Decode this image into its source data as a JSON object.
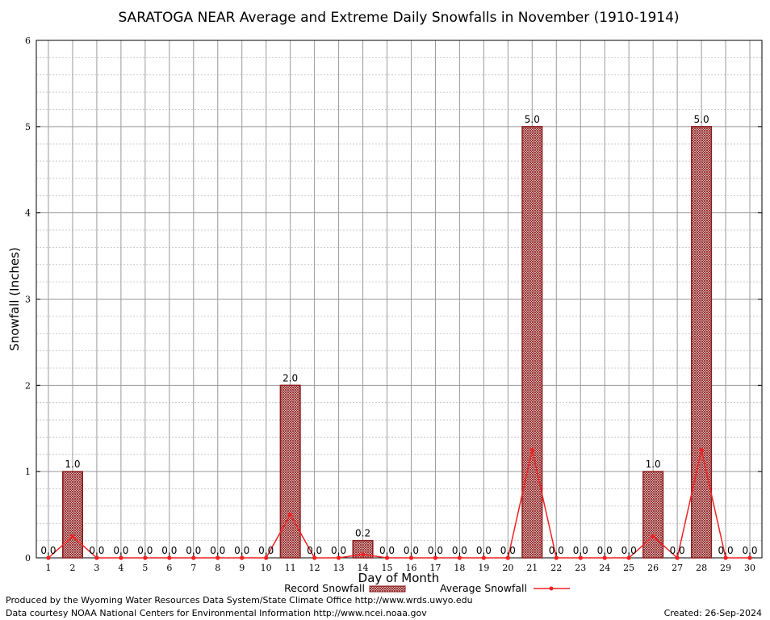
{
  "chart_data": {
    "type": "bar",
    "title": "SARATOGA NEAR Average and Extreme Daily Snowfalls in November (1910-1914)",
    "xlabel": "Day of Month",
    "ylabel": "Snowfall (Inches)",
    "ylim": [
      0,
      6
    ],
    "yticks": [
      "0",
      "1",
      "2",
      "3",
      "4",
      "5",
      "6"
    ],
    "categories": [
      "1",
      "2",
      "3",
      "4",
      "5",
      "6",
      "7",
      "8",
      "9",
      "10",
      "11",
      "12",
      "13",
      "14",
      "15",
      "16",
      "17",
      "18",
      "19",
      "20",
      "21",
      "22",
      "23",
      "24",
      "25",
      "26",
      "27",
      "28",
      "29",
      "30"
    ],
    "series": [
      {
        "name": "Record Snowfall",
        "type": "bar",
        "color": "#8b1a1a",
        "values": [
          0,
          1.0,
          0,
          0,
          0,
          0,
          0,
          0,
          0,
          0,
          2.0,
          0,
          0,
          0.2,
          0,
          0,
          0,
          0,
          0,
          0,
          5.0,
          0,
          0,
          0,
          0,
          1.0,
          0,
          5.0,
          0,
          0
        ]
      },
      {
        "name": "Average Snowfall",
        "type": "line",
        "color": "#ee2222",
        "values": [
          0,
          0.25,
          0,
          0,
          0,
          0,
          0,
          0,
          0,
          0,
          0.5,
          0,
          0,
          0.04,
          0,
          0,
          0,
          0,
          0,
          0,
          1.25,
          0,
          0,
          0,
          0,
          0.25,
          0,
          1.25,
          0,
          0
        ]
      }
    ],
    "data_labels": [
      "0.0",
      "1.0",
      "0.0",
      "0.0",
      "0.0",
      "0.0",
      "0.0",
      "0.0",
      "0.0",
      "0.0",
      "2.0",
      "0.0",
      "0.0",
      "0.2",
      "0.0",
      "0.0",
      "0.0",
      "0.0",
      "0.0",
      "0.0",
      "5.0",
      "0.0",
      "0.0",
      "0.0",
      "0.0",
      "1.0",
      "0.0",
      "5.0",
      "0.0",
      "0.0"
    ],
    "grid": true,
    "legend_position": "bottom-center"
  },
  "footer": {
    "line1": "Produced by the Wyoming Water Resources Data System/State Climate Office http://www.wrds.uwyo.edu",
    "line2": "Data courtesy NOAA National Centers for Environmental Information http://www.ncei.noaa.gov",
    "created": "Created:  26-Sep-2024"
  }
}
